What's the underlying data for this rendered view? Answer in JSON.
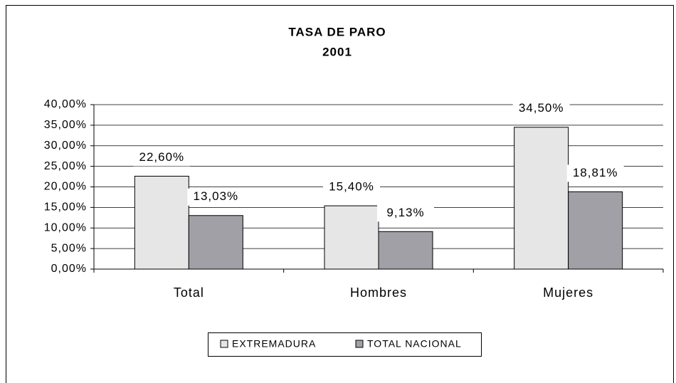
{
  "chart_data": {
    "type": "bar",
    "title": "TASA DE PARO",
    "subtitle": "2001",
    "categories": [
      "Total",
      "Hombres",
      "Mujeres"
    ],
    "series": [
      {
        "name": "EXTREMADURA",
        "color": "#e6e6e6",
        "values": [
          22.6,
          15.4,
          34.5
        ],
        "value_labels": [
          "22,60%",
          "15,40%",
          "34,50%"
        ]
      },
      {
        "name": "TOTAL NACIONAL",
        "color": "#a0a0a6",
        "values": [
          13.03,
          9.13,
          18.81
        ],
        "value_labels": [
          "13,03%",
          "9,13%",
          "18,81%"
        ]
      }
    ],
    "ylim": [
      0,
      40
    ],
    "yticks": [
      {
        "value": 0,
        "label": "0,00%"
      },
      {
        "value": 5,
        "label": "5,00%"
      },
      {
        "value": 10,
        "label": "10,00%"
      },
      {
        "value": 15,
        "label": "15,00%"
      },
      {
        "value": 20,
        "label": "20,00%"
      },
      {
        "value": 25,
        "label": "25,00%"
      },
      {
        "value": 30,
        "label": "30,00%"
      },
      {
        "value": 35,
        "label": "35,00%"
      },
      {
        "value": 40,
        "label": "40,00%"
      }
    ],
    "grid": true,
    "legend": "bottom"
  }
}
